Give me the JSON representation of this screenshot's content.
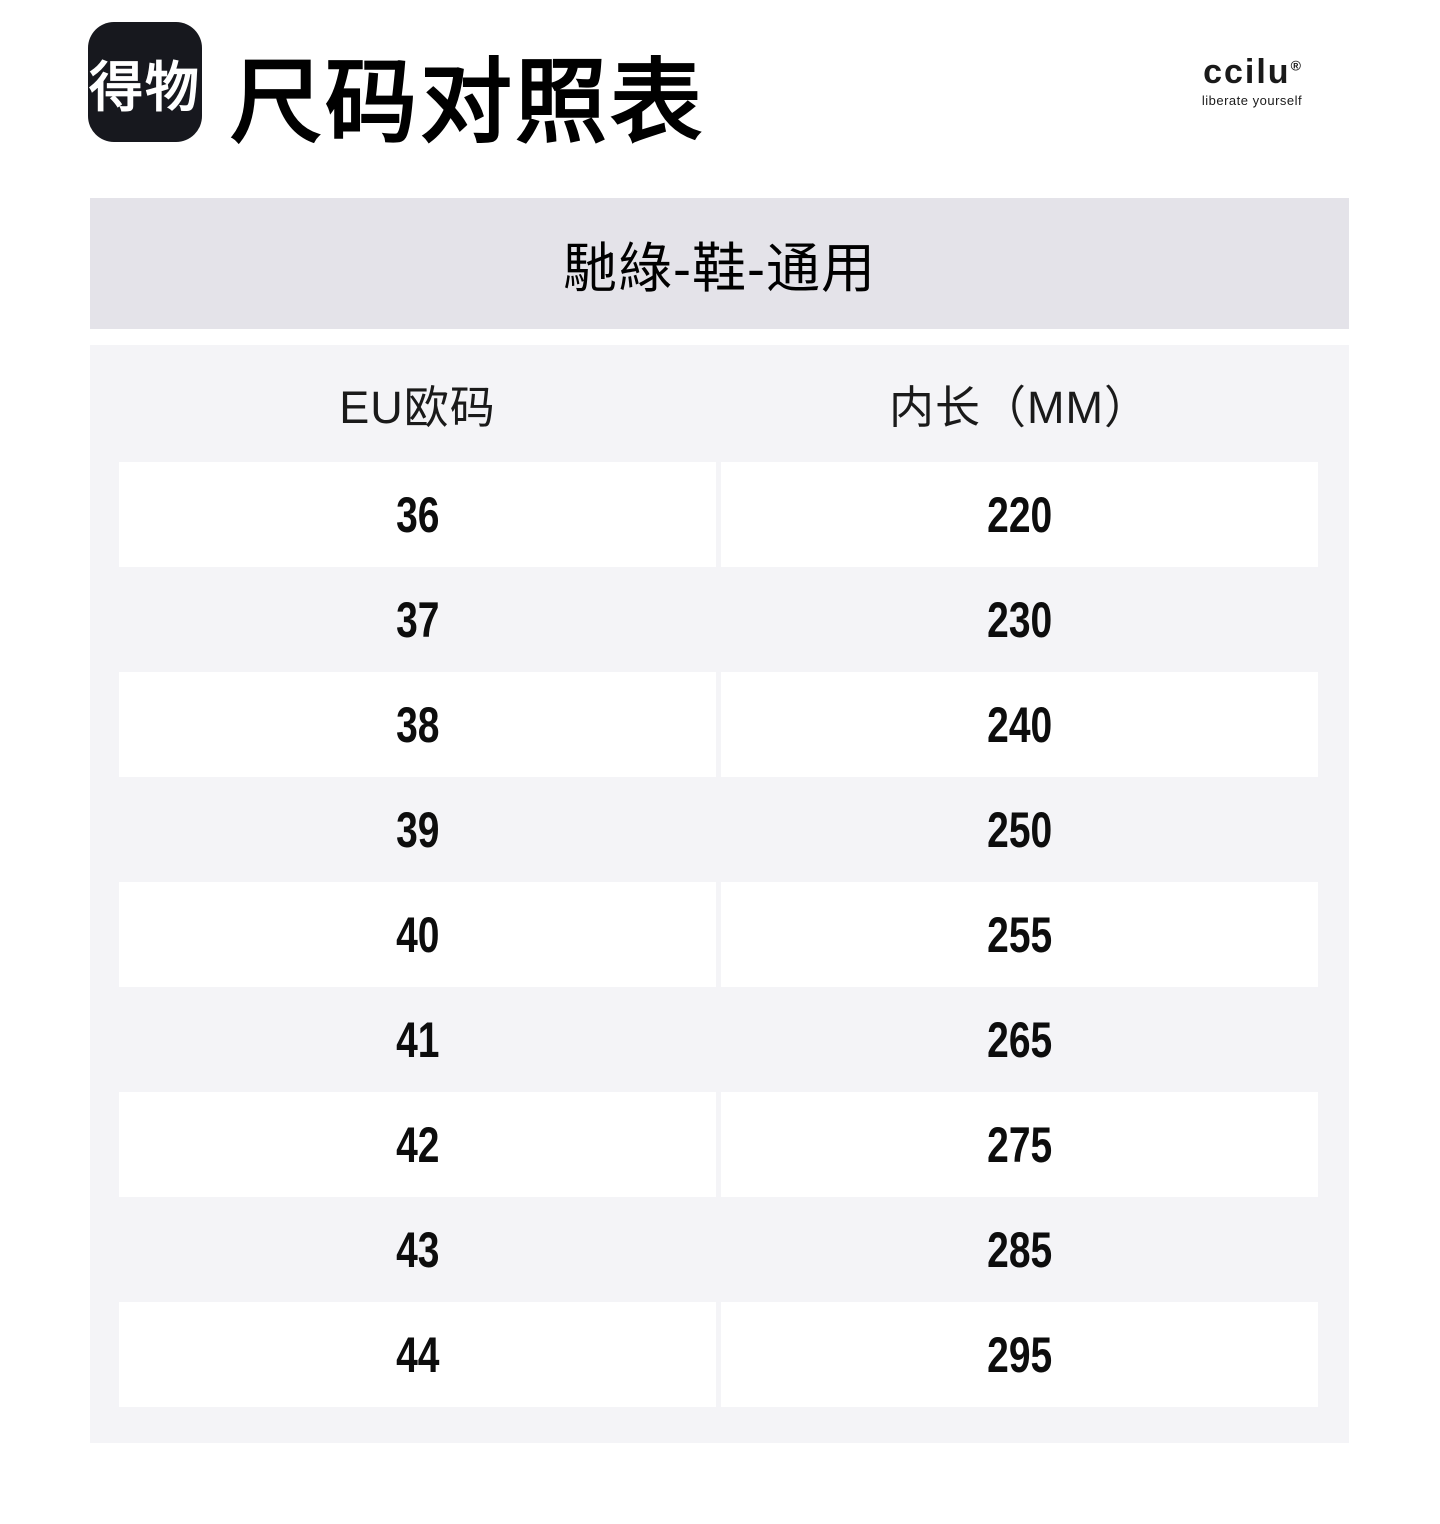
{
  "header": {
    "app_logo": "得物",
    "page_title": "尺码对照表",
    "brand": {
      "name": "ccilu",
      "registered": "®",
      "tagline": "liberate yourself"
    }
  },
  "chart": {
    "band_title": "馳綠-鞋-通用",
    "columns": [
      "EU欧码",
      "内长（MM）"
    ],
    "rows": [
      {
        "eu": "36",
        "mm": "220"
      },
      {
        "eu": "37",
        "mm": "230"
      },
      {
        "eu": "38",
        "mm": "240"
      },
      {
        "eu": "39",
        "mm": "250"
      },
      {
        "eu": "40",
        "mm": "255"
      },
      {
        "eu": "41",
        "mm": "265"
      },
      {
        "eu": "42",
        "mm": "275"
      },
      {
        "eu": "43",
        "mm": "285"
      },
      {
        "eu": "44",
        "mm": "295"
      }
    ]
  },
  "chart_data": {
    "type": "table",
    "title": "馳綠-鞋-通用",
    "columns": [
      "EU欧码",
      "内长（MM）"
    ],
    "rows": [
      [
        "36",
        "220"
      ],
      [
        "37",
        "230"
      ],
      [
        "38",
        "240"
      ],
      [
        "39",
        "250"
      ],
      [
        "40",
        "255"
      ],
      [
        "41",
        "265"
      ],
      [
        "42",
        "275"
      ],
      [
        "43",
        "285"
      ],
      [
        "44",
        "295"
      ]
    ]
  },
  "colors": {
    "logo_bg": "#17181e",
    "band_bg": "#e4e3e9",
    "table_bg": "#f4f4f7",
    "cell_bg": "#ffffff",
    "text": "#111111"
  }
}
